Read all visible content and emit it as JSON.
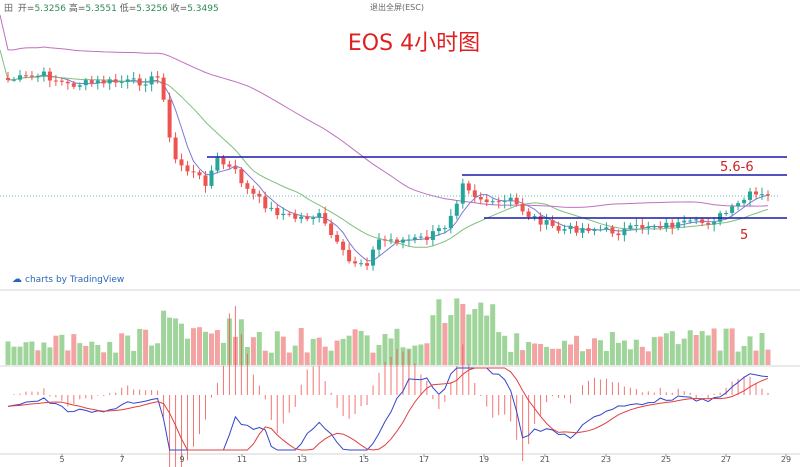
{
  "toolbar": {
    "icon": "grid-icon",
    "prefix": "田",
    "open_label": "开=",
    "open_value": "5.3256",
    "high_label": "高=",
    "high_value": "5.3551",
    "low_label": "低=",
    "low_value": "5.3256",
    "close_label": "收=",
    "close_value": "5.3495",
    "exit_fullscreen": "退出全屏(ESC)"
  },
  "watermark": {
    "icon": "cloud-icon",
    "text": "charts by TradingView"
  },
  "chart_data": {
    "type": "candlestick",
    "title": "EOS 4小时图",
    "title_color": "#e02020",
    "x_tick_labels": [
      "5",
      "7",
      "9",
      "11",
      "13",
      "15",
      "17",
      "19",
      "21",
      "23",
      "25",
      "27",
      "29"
    ],
    "annotations": [
      {
        "text": "5.6-6",
        "color": "#cc2222"
      },
      {
        "text": "5",
        "color": "#cc2222"
      }
    ],
    "colors": {
      "up": "#26a69a",
      "down": "#ef5350",
      "level_line": "#1a1aa8",
      "ma_fast": "#7b7bd6",
      "ma_mid": "#7fbf7f",
      "ma_slow": "#c070c0",
      "macd": "#3344cc",
      "signal": "#e04040"
    }
  }
}
